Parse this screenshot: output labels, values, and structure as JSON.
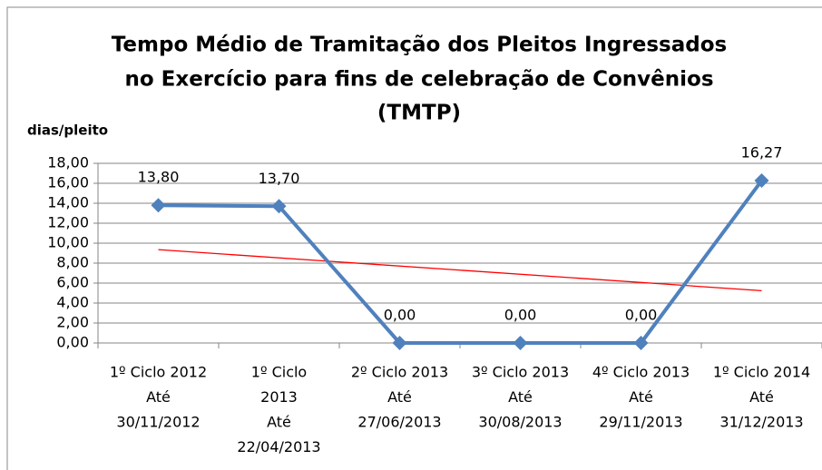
{
  "chart_data": {
    "type": "line",
    "title": [
      "Tempo Médio de Tramitação dos Pleitos Ingressados",
      "no Exercício para fins de celebração de Convênios",
      "(TMTP)"
    ],
    "y_label": "dias/pleito",
    "categories": [
      [
        "1º Ciclo 2012",
        "Até",
        "30/11/2012"
      ],
      [
        "1º  Ciclo",
        "2013",
        "Até",
        "22/04/2013"
      ],
      [
        "2º Ciclo 2013",
        "Até",
        "27/06/2013"
      ],
      [
        "3º Ciclo 2013",
        "Até",
        "30/08/2013"
      ],
      [
        "4º Ciclo 2013",
        "Até",
        "29/11/2013"
      ],
      [
        "1º Ciclo 2014",
        "Até",
        "31/12/2013"
      ]
    ],
    "series": [
      {
        "color": "#4f81bd",
        "values": [
          13.8,
          13.7,
          0,
          0,
          0,
          16.27
        ],
        "value_labels": [
          "13,80",
          "13,70",
          "0,00",
          "0,00",
          "0,00",
          "16,27"
        ]
      }
    ],
    "trendline": {
      "color": "#ff0000",
      "values": [
        9.35,
        5.24
      ]
    },
    "ylim": [
      0,
      18
    ],
    "yticks": [
      {
        "value": 0,
        "label": "0,00"
      },
      {
        "value": 2,
        "label": "2,00"
      },
      {
        "value": 4,
        "label": "4,00"
      },
      {
        "value": 6,
        "label": "6,00"
      },
      {
        "value": 8,
        "label": "8,00"
      },
      {
        "value": 10,
        "label": "10,00"
      },
      {
        "value": 12,
        "label": "12,00"
      },
      {
        "value": 14,
        "label": "14,00"
      },
      {
        "value": 16,
        "label": "16,00"
      },
      {
        "value": 18,
        "label": "18,00"
      }
    ],
    "grid": true
  }
}
